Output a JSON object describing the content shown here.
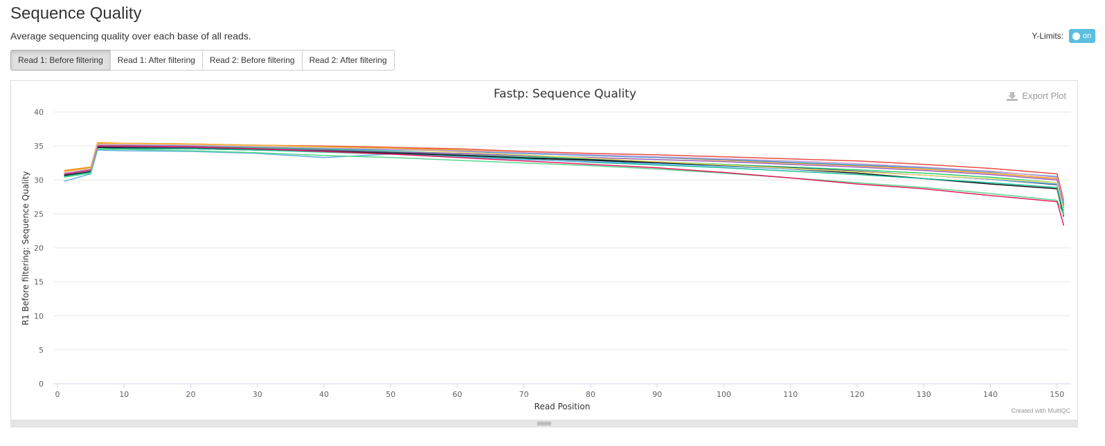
{
  "page": {
    "title": "Sequence Quality",
    "subtitle": "Average sequencing quality over each base of all reads."
  },
  "ylimits": {
    "label": "Y-Limits:",
    "toggle_text": "on",
    "enabled": true
  },
  "tabs": [
    {
      "label": "Read 1: Before filtering",
      "active": true
    },
    {
      "label": "Read 1: After filtering",
      "active": false
    },
    {
      "label": "Read 2: Before filtering",
      "active": false
    },
    {
      "label": "Read 2: After filtering",
      "active": false
    }
  ],
  "plot": {
    "export_label": "Export Plot",
    "credit": "Created with MultiQC"
  },
  "chart_data": {
    "type": "line",
    "title": "Fastp: Sequence Quality",
    "xlabel": "Read Position",
    "ylabel": "R1 Before filtering: Sequence Quality",
    "xlim": [
      0,
      152
    ],
    "ylim": [
      0,
      40
    ],
    "x_ticks": [
      0,
      10,
      20,
      30,
      40,
      50,
      60,
      70,
      80,
      90,
      100,
      110,
      120,
      130,
      140,
      150
    ],
    "y_ticks": [
      0,
      5,
      10,
      15,
      20,
      25,
      30,
      35,
      40
    ],
    "grid": true,
    "legend": "none",
    "x": [
      1,
      5,
      6,
      10,
      20,
      30,
      40,
      50,
      60,
      70,
      80,
      90,
      100,
      110,
      120,
      130,
      140,
      150,
      151
    ],
    "series": [
      {
        "color": "#e74c3c",
        "values": [
          31.3,
          31.8,
          35.4,
          35.4,
          35.3,
          35.1,
          35.0,
          34.8,
          34.6,
          34.2,
          33.9,
          33.7,
          33.4,
          33.1,
          32.8,
          32.3,
          31.7,
          30.9,
          27.0
        ]
      },
      {
        "color": "#f39c12",
        "values": [
          31.4,
          31.9,
          35.5,
          35.4,
          35.3,
          35.1,
          34.9,
          34.7,
          34.4,
          34.0,
          33.6,
          33.3,
          32.9,
          32.5,
          32.1,
          31.6,
          31.0,
          30.2,
          26.0
        ]
      },
      {
        "color": "#3498db",
        "values": [
          31.0,
          31.5,
          35.1,
          35.1,
          35.0,
          34.8,
          34.6,
          34.4,
          34.2,
          33.9,
          33.6,
          33.3,
          33.0,
          32.6,
          32.2,
          31.8,
          31.2,
          30.5,
          26.5
        ]
      },
      {
        "color": "#2ecc71",
        "values": [
          30.9,
          31.4,
          35.0,
          35.0,
          34.9,
          34.7,
          34.5,
          34.2,
          33.9,
          33.5,
          33.1,
          32.7,
          32.3,
          31.9,
          31.5,
          31.0,
          30.4,
          29.6,
          25.5
        ]
      },
      {
        "color": "#9b59b6",
        "values": [
          30.8,
          31.3,
          34.9,
          34.9,
          34.8,
          34.6,
          34.4,
          34.1,
          33.9,
          33.6,
          33.3,
          33.0,
          32.7,
          32.3,
          31.9,
          31.4,
          30.8,
          30.0,
          26.2
        ]
      },
      {
        "color": "#34495e",
        "values": [
          30.7,
          31.2,
          34.8,
          34.8,
          34.7,
          34.5,
          34.3,
          34.0,
          33.7,
          33.3,
          33.0,
          32.6,
          32.2,
          31.8,
          31.3,
          30.7,
          30.1,
          29.3,
          25.8
        ]
      },
      {
        "color": "#111111",
        "values": [
          30.6,
          31.2,
          34.8,
          34.7,
          34.6,
          34.4,
          34.2,
          33.9,
          33.6,
          33.2,
          32.9,
          32.5,
          32.1,
          31.6,
          31.0,
          30.2,
          29.4,
          28.7,
          24.6
        ]
      },
      {
        "color": "#1abc9c",
        "values": [
          30.5,
          31.1,
          34.6,
          34.6,
          34.6,
          34.4,
          34.1,
          33.8,
          33.5,
          33.1,
          32.6,
          32.2,
          31.8,
          31.3,
          30.8,
          30.2,
          29.6,
          28.9,
          25.0
        ]
      },
      {
        "color": "#5dade2",
        "values": [
          29.8,
          30.9,
          34.4,
          34.3,
          34.2,
          33.9,
          33.3,
          33.8,
          33.4,
          33.0,
          32.7,
          32.4,
          32.0,
          31.6,
          31.2,
          30.7,
          30.1,
          29.4,
          26.0
        ]
      },
      {
        "color": "#58d68d",
        "values": [
          30.4,
          31.0,
          34.5,
          34.5,
          34.3,
          34.0,
          33.6,
          33.3,
          32.9,
          32.5,
          32.1,
          31.6,
          31.0,
          30.3,
          29.6,
          28.9,
          28.0,
          27.0,
          24.8
        ]
      },
      {
        "color": "#e6195b",
        "values": [
          30.9,
          31.5,
          35.0,
          35.0,
          34.9,
          34.6,
          34.2,
          33.8,
          33.3,
          32.8,
          32.3,
          31.8,
          31.1,
          30.3,
          29.4,
          28.7,
          27.7,
          26.8,
          23.3
        ]
      },
      {
        "color": "#f7dc6f",
        "values": [
          31.2,
          31.7,
          35.3,
          35.3,
          35.2,
          35.0,
          34.8,
          34.5,
          34.1,
          33.7,
          33.2,
          32.7,
          32.2,
          31.7,
          31.2,
          30.7,
          30.2,
          29.6,
          25.6
        ]
      },
      {
        "color": "#c39bd3",
        "values": [
          31.0,
          31.6,
          35.2,
          35.2,
          35.1,
          34.9,
          34.7,
          34.5,
          34.3,
          34.0,
          33.7,
          33.4,
          33.1,
          32.8,
          32.4,
          31.9,
          31.3,
          30.4,
          26.8
        ]
      }
    ]
  }
}
